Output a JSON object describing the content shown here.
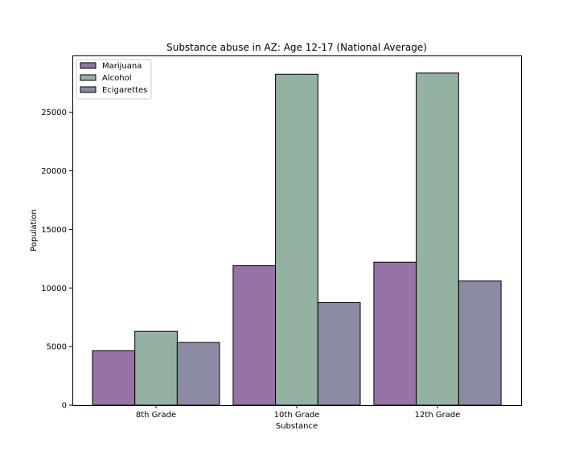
{
  "chart_data": {
    "type": "bar",
    "title": "Substance abuse in AZ: Age 12-17 (National Average)",
    "xlabel": "Substance",
    "ylabel": "Population",
    "categories": [
      "8th Grade",
      "10th Grade",
      "12th Grade"
    ],
    "series": [
      {
        "name": "Marijuana",
        "values": [
          4650,
          11900,
          12200
        ],
        "color": "#9673a6"
      },
      {
        "name": "Alcohol",
        "values": [
          6300,
          28250,
          28350
        ],
        "color": "#94b2a1"
      },
      {
        "name": "Ecigarettes",
        "values": [
          5350,
          8750,
          10600
        ],
        "color": "#8b8ba3"
      }
    ],
    "ylim": [
      0,
      29850
    ],
    "yticks": [
      0,
      5000,
      10000,
      15000,
      20000,
      25000
    ],
    "grid": false,
    "legend_position": "top-left"
  }
}
